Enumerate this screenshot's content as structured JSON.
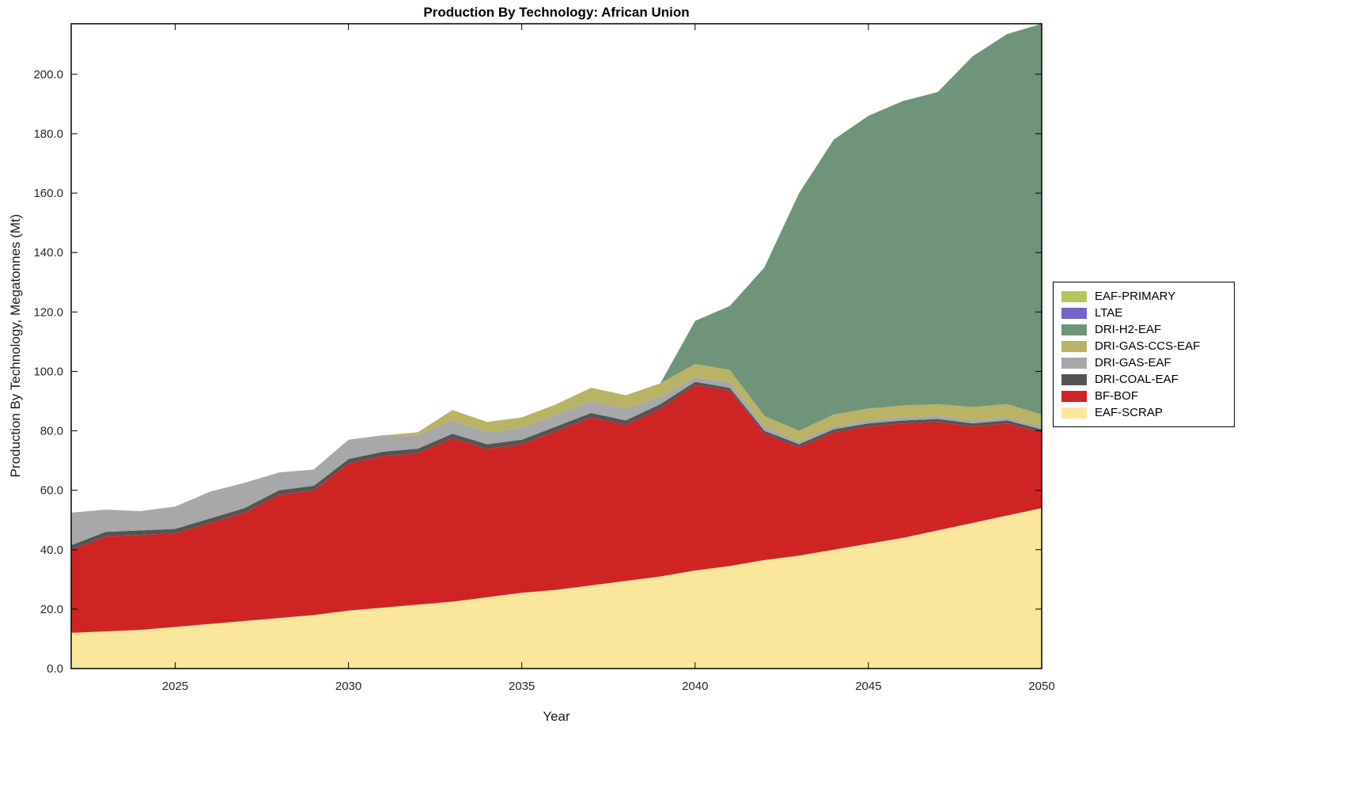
{
  "chart_data": {
    "type": "area",
    "stacked": true,
    "title": "Production By Technology: African Union",
    "xlabel": "Year",
    "ylabel": "Production By Technology, Megatonnes (Mt)",
    "xlim": [
      2022,
      2050
    ],
    "ylim": [
      0,
      217
    ],
    "xticks": [
      2025,
      2030,
      2035,
      2040,
      2045,
      2050
    ],
    "yticks": [
      0,
      20,
      40,
      60,
      80,
      100,
      120,
      140,
      160,
      180,
      200
    ],
    "grid": false,
    "legend_position": "right-outside",
    "x": [
      2022,
      2023,
      2024,
      2025,
      2026,
      2027,
      2028,
      2029,
      2030,
      2031,
      2032,
      2033,
      2034,
      2035,
      2036,
      2037,
      2038,
      2039,
      2040,
      2041,
      2042,
      2043,
      2044,
      2045,
      2046,
      2047,
      2048,
      2049,
      2050
    ],
    "series": [
      {
        "name": "EAF-SCRAP",
        "color": "#FBE79C",
        "values": [
          12,
          12.5,
          13,
          14,
          15,
          16,
          17,
          18,
          19.5,
          20.5,
          21.5,
          22.5,
          24,
          25.5,
          26.5,
          28,
          29.5,
          31,
          33,
          34.5,
          36.5,
          38,
          40,
          42,
          44,
          46.5,
          49,
          51.5,
          54
        ]
      },
      {
        "name": "BF-BOF",
        "color": "#CE2524",
        "values": [
          28,
          32,
          32,
          31.5,
          34,
          36.5,
          41.5,
          42,
          49.5,
          51,
          51,
          55,
          50,
          50,
          53.5,
          56.5,
          52.5,
          56.5,
          62.5,
          59,
          42.5,
          36.5,
          39.5,
          39.5,
          38.5,
          36.5,
          32.5,
          31,
          25.5
        ]
      },
      {
        "name": "DRI-COAL-EAF",
        "color": "#545454",
        "values": [
          1.5,
          1.5,
          1.5,
          1.5,
          1.5,
          1.5,
          1.5,
          1.5,
          1.5,
          1.5,
          1.5,
          1.5,
          1.5,
          1.5,
          1.5,
          1.5,
          1.5,
          1.5,
          1,
          1,
          1,
          1,
          1,
          1,
          1,
          1,
          1,
          1,
          1
        ]
      },
      {
        "name": "DRI-GAS-EAF",
        "color": "#A8A8A8",
        "values": [
          11,
          7.5,
          6.5,
          7.5,
          9,
          8.5,
          6,
          5.5,
          6.5,
          5.5,
          4.5,
          4.5,
          4,
          4,
          4,
          4,
          4,
          2.5,
          1.5,
          2,
          1.5,
          1,
          1,
          1,
          1,
          1,
          1,
          1,
          1
        ]
      },
      {
        "name": "DRI-GAS-CCS-EAF",
        "color": "#B9B366",
        "values": [
          0,
          0,
          0,
          0,
          0,
          0,
          0,
          0,
          0,
          0,
          1,
          3.5,
          3.5,
          3.5,
          3.5,
          4.5,
          4.5,
          4.5,
          4.5,
          4,
          3.5,
          3.5,
          4,
          4,
          4,
          4,
          4.5,
          4.5,
          4
        ]
      },
      {
        "name": "DRI-H2-EAF",
        "color": "#6F9479",
        "values": [
          0,
          0,
          0,
          0,
          0,
          0,
          0,
          0,
          0,
          0,
          0,
          0,
          0,
          0,
          0,
          0,
          0,
          0,
          14.5,
          21.5,
          50,
          80,
          92.5,
          98.5,
          102.5,
          105,
          118,
          124.5,
          131.5
        ]
      },
      {
        "name": "LTAE",
        "color": "#7265C6",
        "values": [
          0,
          0,
          0,
          0,
          0,
          0,
          0,
          0,
          0,
          0,
          0,
          0,
          0,
          0,
          0,
          0,
          0,
          0,
          0,
          0,
          0,
          0,
          0,
          0,
          0,
          0,
          0,
          0,
          0
        ]
      },
      {
        "name": "EAF-PRIMARY",
        "color": "#B5C75A",
        "values": [
          0,
          0,
          0,
          0,
          0,
          0,
          0,
          0,
          0,
          0,
          0,
          0,
          0,
          0,
          0,
          0,
          0,
          0,
          0,
          0,
          0,
          0,
          0,
          0,
          0,
          0,
          0,
          0,
          0
        ]
      }
    ]
  }
}
